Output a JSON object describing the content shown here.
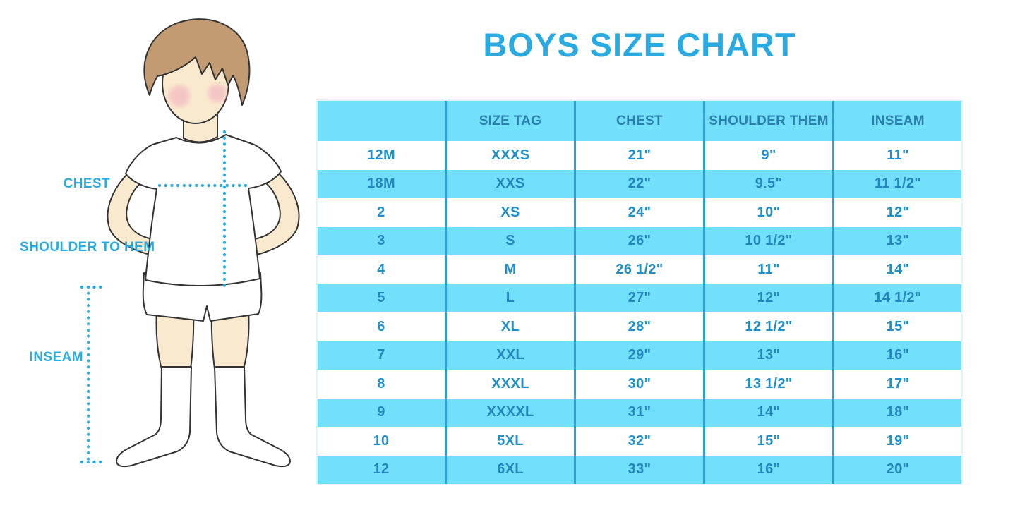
{
  "title": "BOYS SIZE CHART",
  "figure": {
    "labels": {
      "chest": "CHEST",
      "shoulder_to_hem": "SHOULDER TO HEM",
      "inseam": "INSEAM"
    }
  },
  "chart_data": {
    "type": "table",
    "title": "BOYS SIZE CHART",
    "columns": [
      "",
      "SIZE TAG",
      "CHEST",
      "SHOULDER THEM",
      "INSEAM"
    ],
    "rows": [
      [
        "12M",
        "XXXS",
        "21\"",
        "9\"",
        "11\""
      ],
      [
        "18M",
        "XXS",
        "22\"",
        "9.5\"",
        "11 1/2\""
      ],
      [
        "2",
        "XS",
        "24\"",
        "10\"",
        "12\""
      ],
      [
        "3",
        "S",
        "26\"",
        "10 1/2\"",
        "13\""
      ],
      [
        "4",
        "M",
        "26 1/2\"",
        "11\"",
        "14\""
      ],
      [
        "5",
        "L",
        "27\"",
        "12\"",
        "14 1/2\""
      ],
      [
        "6",
        "XL",
        "28\"",
        "12 1/2\"",
        "15\""
      ],
      [
        "7",
        "XXL",
        "29\"",
        "13\"",
        "16\""
      ],
      [
        "8",
        "XXXL",
        "30\"",
        "13 1/2\"",
        "17\""
      ],
      [
        "9",
        "XXXXL",
        "31\"",
        "14\"",
        "18\""
      ],
      [
        "10",
        "5XL",
        "32\"",
        "15\"",
        "19\""
      ],
      [
        "12",
        "6XL",
        "33\"",
        "16\"",
        "20\""
      ]
    ],
    "layout": {
      "header_background": "#73E0FB",
      "alternating_rows": true,
      "grid": "vertical-dividers-only"
    }
  },
  "colors": {
    "accent_blue": "#29ABE2",
    "row_blue": "#73E0FB",
    "divider_blue": "#2D9FD1",
    "header_text": "#2C80AF",
    "white_row_text": "#1E90CB",
    "blue_row_text": "#2486BC",
    "hair": "#C29B72",
    "skin": "#F9E9CE",
    "blush": "#F1A9C0"
  }
}
